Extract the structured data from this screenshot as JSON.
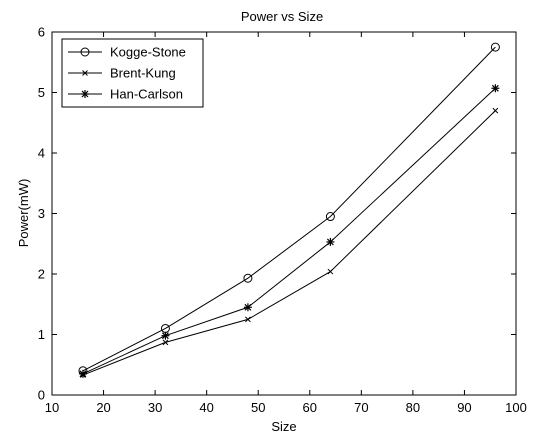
{
  "chart_data": {
    "type": "line",
    "title": "Power vs Size",
    "xlabel": "Size",
    "ylabel": "Power(mW)",
    "xlim": [
      10,
      100
    ],
    "ylim": [
      0,
      6
    ],
    "xticks": [
      10,
      20,
      30,
      40,
      50,
      60,
      70,
      80,
      90,
      100
    ],
    "yticks": [
      0,
      1,
      2,
      3,
      4,
      5,
      6
    ],
    "grid": false,
    "legend_position": "top-left",
    "series": [
      {
        "name": "Kogge-Stone",
        "marker": "circle",
        "color": "#000000",
        "x": [
          16,
          32,
          48,
          64,
          96
        ],
        "y": [
          0.4,
          1.1,
          1.93,
          2.95,
          5.75
        ]
      },
      {
        "name": "Brent-Kung",
        "marker": "x",
        "color": "#000000",
        "x": [
          16,
          32,
          48,
          64,
          96
        ],
        "y": [
          0.33,
          0.87,
          1.25,
          2.04,
          4.7
        ]
      },
      {
        "name": "Han-Carlson",
        "marker": "star",
        "color": "#000000",
        "x": [
          16,
          32,
          48,
          64,
          96
        ],
        "y": [
          0.35,
          0.98,
          1.45,
          2.53,
          5.07
        ]
      }
    ]
  }
}
